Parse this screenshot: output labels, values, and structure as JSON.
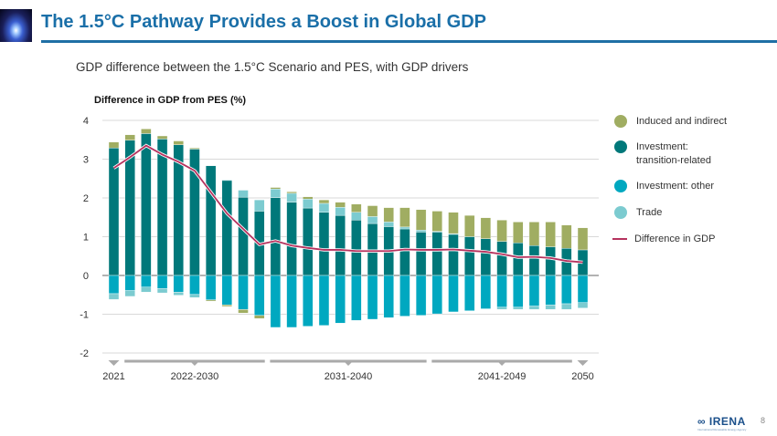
{
  "header": {
    "title": "The 1.5°C Pathway Provides a Boost in Global GDP"
  },
  "subtitle": "GDP difference between the 1.5°C Scenario and PES, with GDP drivers",
  "footer": {
    "logo_text": "IRENA",
    "logo_subtext": "International Renewable Energy Agency",
    "page_number": "8"
  },
  "colors": {
    "induced": "#a0ad62",
    "investment_transition": "#00787a",
    "investment_other": "#00a8c0",
    "trade": "#7ccbd0",
    "gdp_line": "#b5325e",
    "title": "#1a6fa8"
  },
  "chart_data": {
    "type": "bar",
    "stacked": true,
    "title": "",
    "ylabel": "Difference in GDP from PES (%)",
    "ylim": [
      -2,
      4
    ],
    "yticks": [
      4,
      3,
      2,
      1,
      0,
      -1,
      -2
    ],
    "grid": true,
    "legend_position": "right",
    "x": [
      2021,
      2022,
      2023,
      2024,
      2025,
      2026,
      2027,
      2028,
      2029,
      2030,
      2031,
      2032,
      2033,
      2034,
      2035,
      2036,
      2037,
      2038,
      2039,
      2040,
      2041,
      2042,
      2043,
      2044,
      2045,
      2046,
      2047,
      2048,
      2049,
      2050
    ],
    "x_groups": [
      {
        "label": "2021",
        "from": 2021,
        "to": 2021
      },
      {
        "label": "2022-2030",
        "from": 2022,
        "to": 2030
      },
      {
        "label": "2031-2040",
        "from": 2031,
        "to": 2040
      },
      {
        "label": "2041-2049",
        "from": 2041,
        "to": 2049
      },
      {
        "label": "2050",
        "from": 2050,
        "to": 2050
      }
    ],
    "series": [
      {
        "name": "Induced and indirect",
        "kind": "bar",
        "color_key": "induced",
        "values": [
          0.15,
          0.14,
          0.12,
          0.08,
          0.1,
          0.03,
          -0.03,
          -0.04,
          -0.09,
          -0.08,
          0.04,
          0.04,
          0.06,
          0.09,
          0.13,
          0.21,
          0.28,
          0.37,
          0.5,
          0.53,
          0.52,
          0.55,
          0.55,
          0.54,
          0.55,
          0.54,
          0.61,
          0.64,
          0.6,
          0.57
        ]
      },
      {
        "name": "Investment: transition-related",
        "kind": "bar",
        "color_key": "investment_transition",
        "values": [
          3.29,
          3.49,
          3.66,
          3.52,
          3.37,
          3.26,
          2.83,
          2.45,
          2.02,
          1.66,
          2.01,
          1.89,
          1.74,
          1.63,
          1.55,
          1.43,
          1.34,
          1.26,
          1.2,
          1.12,
          1.12,
          1.06,
          1.0,
          0.95,
          0.88,
          0.84,
          0.77,
          0.74,
          0.7,
          0.66
        ]
      },
      {
        "name": "Investment: other",
        "kind": "bar",
        "color_key": "investment_other",
        "values": [
          -0.47,
          -0.39,
          -0.3,
          -0.34,
          -0.43,
          -0.49,
          -0.63,
          -0.76,
          -0.88,
          -1.03,
          -1.34,
          -1.34,
          -1.31,
          -1.29,
          -1.23,
          -1.16,
          -1.13,
          -1.09,
          -1.05,
          -1.03,
          -0.99,
          -0.94,
          -0.91,
          -0.86,
          -0.82,
          -0.82,
          -0.79,
          -0.76,
          -0.73,
          -0.7
        ]
      },
      {
        "name": "Trade",
        "kind": "bar",
        "color_key": "trade",
        "values": [
          -0.15,
          -0.15,
          -0.13,
          -0.11,
          -0.08,
          -0.08,
          0,
          0.02,
          0.18,
          0.29,
          0.22,
          0.23,
          0.23,
          0.23,
          0.21,
          0.2,
          0.18,
          0.12,
          0.05,
          0.05,
          0.02,
          0.02,
          0,
          0,
          -0.055,
          -0.055,
          -0.085,
          -0.115,
          -0.145,
          -0.14
        ]
      },
      {
        "name": "Difference in GDP",
        "kind": "line",
        "color_key": "gdp_line",
        "values": [
          2.77,
          3.05,
          3.35,
          3.12,
          2.93,
          2.7,
          2.15,
          1.6,
          1.2,
          0.8,
          0.89,
          0.77,
          0.71,
          0.66,
          0.66,
          0.63,
          0.63,
          0.63,
          0.67,
          0.66,
          0.66,
          0.67,
          0.64,
          0.61,
          0.55,
          0.47,
          0.48,
          0.45,
          0.375,
          0.34
        ]
      }
    ]
  }
}
